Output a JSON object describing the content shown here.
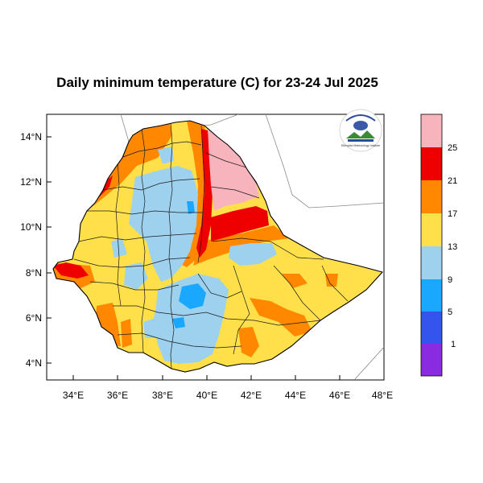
{
  "title": "Daily minimum temperature (C) for 23-24 Jul 2025",
  "x_ticks": [
    "34°E",
    "36°E",
    "38°E",
    "40°E",
    "42°E",
    "44°E",
    "46°E",
    "48°E"
  ],
  "y_ticks": [
    "14°N",
    "12°N",
    "10°N",
    "8°N",
    "6°N",
    "4°N"
  ],
  "colorbar": {
    "labels": [
      "25",
      "21",
      "17",
      "13",
      "9",
      "5",
      "1"
    ],
    "colors": [
      "#f8b4bc",
      "#ee0000",
      "#ff8800",
      "#ffe04a",
      "#9dd1ee",
      "#1aa8ff",
      "#3355ee",
      "#8a2be2"
    ]
  },
  "logo": {
    "text": "Ethiopian Meteorology Institute"
  }
}
